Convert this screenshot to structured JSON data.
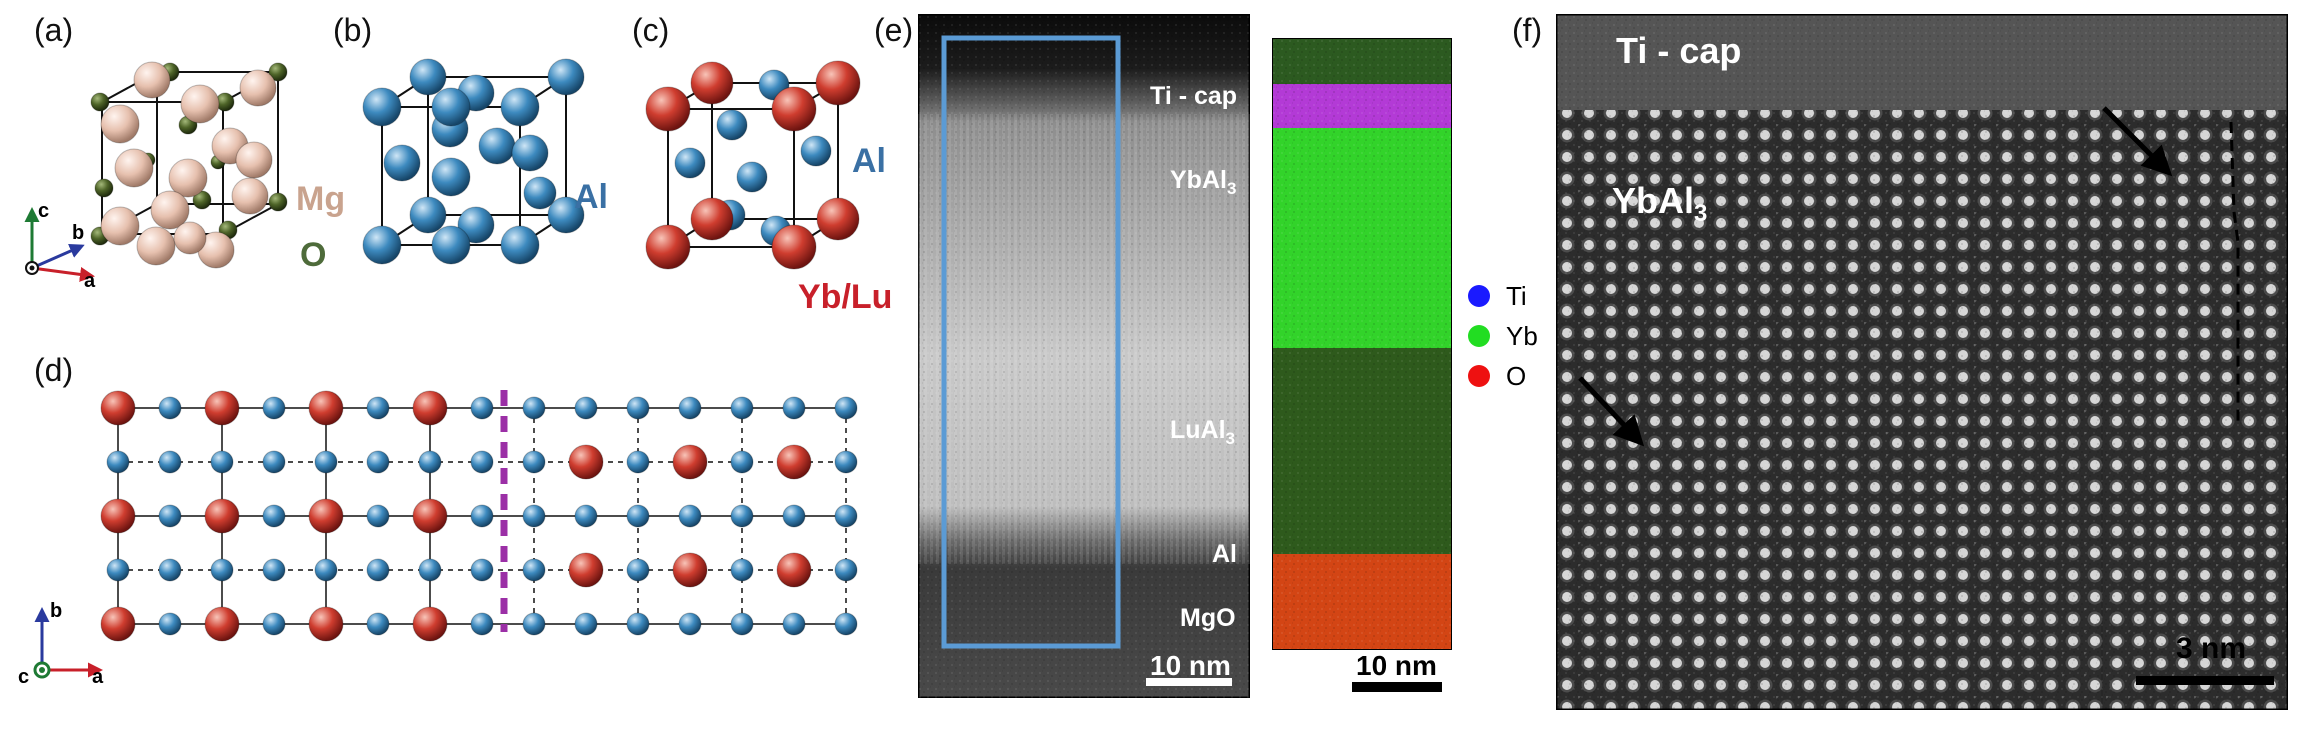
{
  "panels": {
    "a": {
      "label": "(a)",
      "atoms": {
        "mg": "Mg",
        "o": "O"
      },
      "axes": {
        "c": "c",
        "b": "b",
        "a": "a"
      }
    },
    "b": {
      "label": "(b)",
      "atoms": {
        "al": "Al"
      }
    },
    "c": {
      "label": "(c)",
      "atoms": {
        "al": "Al",
        "yblu": "Yb/Lu"
      }
    },
    "d": {
      "label": "(d)",
      "axes": {
        "b": "b",
        "c": "c",
        "a": "a"
      }
    },
    "e": {
      "label": "(e)",
      "layers": {
        "ticap": "Ti - cap",
        "ybal3_main": "YbAl",
        "ybal3_sub": "3",
        "lual3_main": "LuAl",
        "lual3_sub": "3",
        "al": "Al",
        "mgo": "MgO"
      },
      "scalebar_stem": "10 nm",
      "scalebar_eds": "10 nm",
      "legend": [
        {
          "label": "Ti",
          "color": "#1a1aff"
        },
        {
          "label": "Yb",
          "color": "#22dd22"
        },
        {
          "label": "O",
          "color": "#ee1111"
        }
      ]
    },
    "f": {
      "label": "(f)",
      "ticap": "Ti - cap",
      "ybal3_main": "YbAl",
      "ybal3_sub": "3",
      "scalebar": "3 nm"
    }
  },
  "colors": {
    "mg": "#e8c4b4",
    "o_atom": "#4a5e2a",
    "al": "#3a86b8",
    "yblu": "#cc3a30",
    "mg_text": "#c9a38e",
    "o_text": "#4e6b3a",
    "al_text": "#3a70a4",
    "yblu_text": "#c8202a",
    "box_blue": "#5b9bd5",
    "divider": "#9b2fa6"
  }
}
